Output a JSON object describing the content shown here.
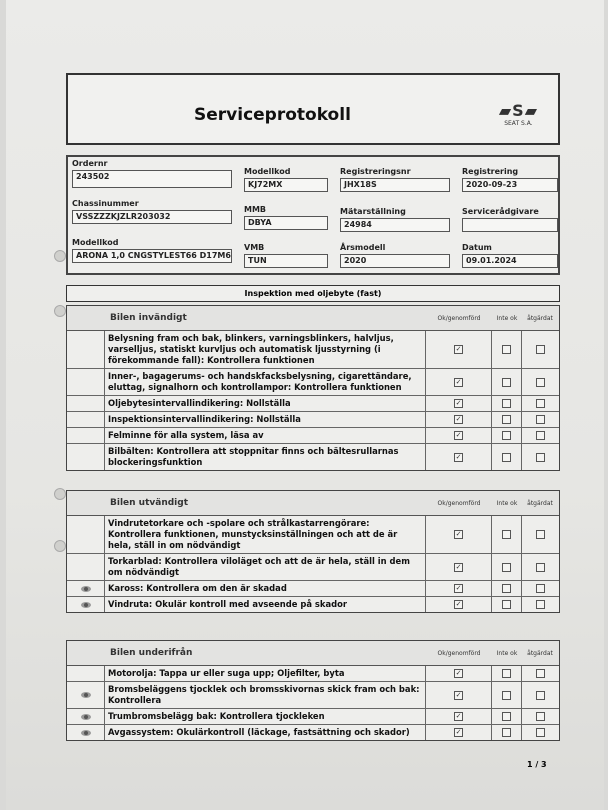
{
  "title": "Serviceprotokoll",
  "logo": {
    "mark": "S",
    "caption": "SEAT S.A."
  },
  "info": {
    "ordernr": {
      "label": "Ordernr",
      "value": "243502"
    },
    "modellkod1": {
      "label": "Modellkod",
      "value": "KJ72MX"
    },
    "regnr": {
      "label": "Registreringsnr",
      "value": "JHX18S"
    },
    "registrering": {
      "label": "Registrering",
      "value": "2020-09-23"
    },
    "chassi": {
      "label": "Chassinummer",
      "value": "VSSZZZKJZLR203032"
    },
    "mmb": {
      "label": "MMB",
      "value": "DBYA"
    },
    "matar": {
      "label": "Mätarställning",
      "value": "24984"
    },
    "radgivare": {
      "label": "Servicerådgivare",
      "value": ""
    },
    "modellkod2": {
      "label": "Modellkod",
      "value": "ARONA 1,0 CNGSTYLEST66 D17M6"
    },
    "vmb": {
      "label": "VMB",
      "value": "TUN"
    },
    "arsmodell": {
      "label": "Årsmodell",
      "value": "2020"
    },
    "datum": {
      "label": "Datum",
      "value": "09.01.2024"
    }
  },
  "inspection_title": "Inspektion med oljebyte (fast)",
  "columns": {
    "ok": "Ok/genomförd",
    "inte_ok": "Inte ok",
    "atgardat": "åtgärdat"
  },
  "sections": [
    {
      "title": "Bilen invändigt",
      "items": [
        {
          "text": "Belysning fram och bak, blinkers, varningsblinkers, halvljus, varselljus, statiskt kurvljus och automatisk ljusstyrning (i förekommande fall): Kontrollera funktionen",
          "eye": false,
          "ok": true,
          "inte_ok": false,
          "atgardat": false
        },
        {
          "text": "Inner-, bagagerums- och handskfacksbelysning, cigarettändare, eluttag, signalhorn och kontrollampor: Kontrollera funktionen",
          "eye": false,
          "ok": true,
          "inte_ok": false,
          "atgardat": false
        },
        {
          "text": "Oljebytesintervallindikering: Nollställa",
          "eye": false,
          "ok": true,
          "inte_ok": false,
          "atgardat": false
        },
        {
          "text": "Inspektionsintervallindikering: Nollställa",
          "eye": false,
          "ok": true,
          "inte_ok": false,
          "atgardat": false
        },
        {
          "text": "Felminne för alla system, läsa av",
          "eye": false,
          "ok": true,
          "inte_ok": false,
          "atgardat": false
        },
        {
          "text": "Bilbälten: Kontrollera att stoppnitar finns och bältesrullarnas blockeringsfunktion",
          "eye": false,
          "ok": true,
          "inte_ok": false,
          "atgardat": false
        }
      ]
    },
    {
      "title": "Bilen utvändigt",
      "items": [
        {
          "text": "Vindrutetorkare och -spolare och strålkastarrengörare: Kontrollera funktionen, munstycksinställningen och att de är hela, ställ in om nödvändigt",
          "eye": false,
          "ok": true,
          "inte_ok": false,
          "atgardat": false
        },
        {
          "text": "Torkarblad: Kontrollera viloläget och att de är hela, ställ in dem om nödvändigt",
          "eye": false,
          "ok": true,
          "inte_ok": false,
          "atgardat": false
        },
        {
          "text": "Kaross: Kontrollera om den är skadad",
          "eye": true,
          "ok": true,
          "inte_ok": false,
          "atgardat": false
        },
        {
          "text": "Vindruta: Okulär kontroll med avseende på skador",
          "eye": true,
          "ok": true,
          "inte_ok": false,
          "atgardat": false
        }
      ]
    },
    {
      "title": "Bilen underifrån",
      "items": [
        {
          "text": "Motorolja: Tappa ur eller suga upp; Oljefilter, byta",
          "eye": false,
          "ok": true,
          "inte_ok": false,
          "atgardat": false
        },
        {
          "text": "Bromsbeläggens tjocklek och bromsskivornas skick fram och bak: Kontrollera",
          "eye": true,
          "ok": true,
          "inte_ok": false,
          "atgardat": false
        },
        {
          "text": "Trumbromsbelägg bak: Kontrollera tjockleken",
          "eye": true,
          "ok": true,
          "inte_ok": false,
          "atgardat": false
        },
        {
          "text": "Avgassystem: Okulärkontroll (läckage, fastsättning och skador)",
          "eye": true,
          "ok": true,
          "inte_ok": false,
          "atgardat": false
        }
      ]
    }
  ],
  "page": "1 / 3"
}
